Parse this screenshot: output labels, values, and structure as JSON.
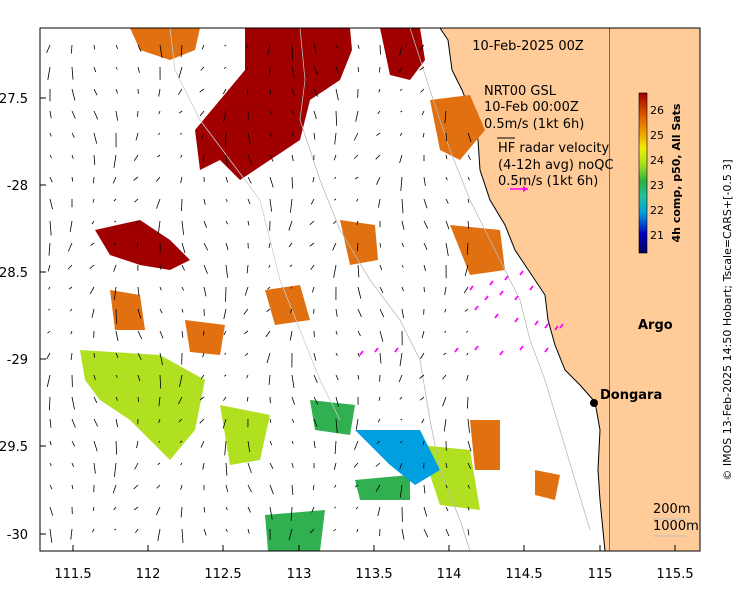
{
  "map": {
    "title": "10-Feb-2025 00Z",
    "x_ticks": [
      "111.5",
      "112",
      "112.5",
      "113",
      "113.5",
      "114",
      "114.5",
      "115",
      "115.5"
    ],
    "y_ticks": [
      "-27.5",
      "-28",
      "-28.5",
      "-29",
      "-29.5",
      "-30"
    ],
    "lon_range": [
      111.3,
      115.65
    ],
    "lat_range": [
      -30.1,
      -27.1
    ]
  },
  "annotations": {
    "nrt_line1": "NRT00 GSL",
    "nrt_line2": "10-Feb 00:00Z",
    "nrt_line3": "0.5m/s (1kt 6h)",
    "hf_line1": "HF radar velocity",
    "hf_line2": "(4-12h avg) noQC",
    "hf_line3": "0.5m/s (1kt 6h)"
  },
  "places": [
    {
      "name": "Argo",
      "lon": 115.15,
      "lat": -28.83
    },
    {
      "name": "Dongara",
      "lon": 114.93,
      "lat": -29.26
    }
  ],
  "contours": {
    "label_200": "200m",
    "label_1000": "1000m"
  },
  "colorbar": {
    "ticks": [
      "26",
      "25",
      "24",
      "23",
      "22",
      "21"
    ],
    "label": "4h comp, p50, All Sats"
  },
  "credit": "© IMOS 13-Feb-2025 14:50 Hobart; Tscale=CARS+[-0.5 3]",
  "colors": {
    "land": "#ffcc99",
    "sst_hot": "#a00000",
    "sst_warm": "#e07010",
    "sst_mid": "#b0e020",
    "sst_cool": "#30b050",
    "sst_cold": "#00a0e0",
    "hf_arrow": "#ff00ff"
  }
}
